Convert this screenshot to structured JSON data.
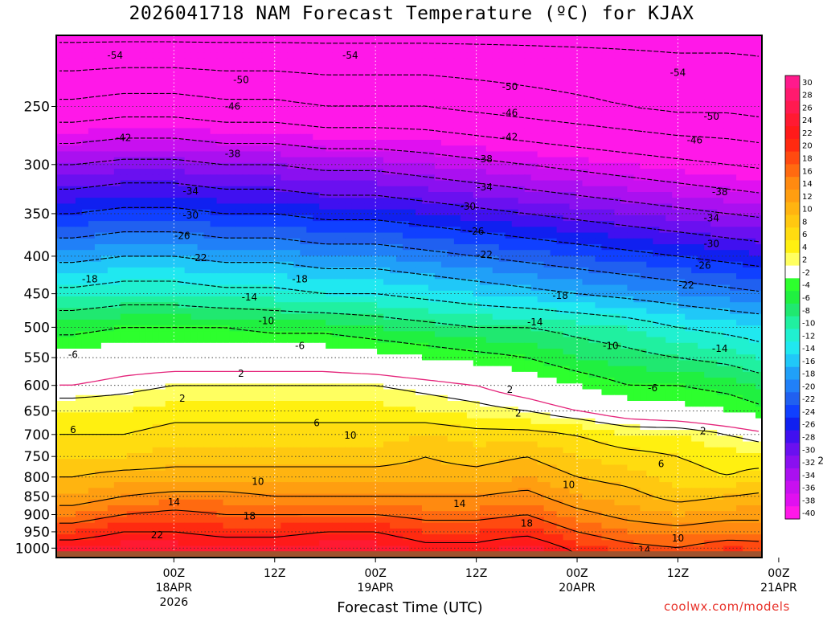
{
  "title": "2026041718 NAM Forecast Temperature (ºC) for KJAX",
  "credit": "coolwx.com/models",
  "colors": {
    "ground": "#a0522d",
    "freezing_line": "#e4247a",
    "positive_contour": "#000000",
    "negative_contour": "#000000"
  },
  "chart_data": {
    "type": "heatmap",
    "title": "2026041718 NAM Forecast Temperature (ºC) for KJAX",
    "xlabel": "Forecast Time (UTC)",
    "ylabel": "",
    "y_scale": "log-pressure (hPa), inverted",
    "y_ticks": [
      250,
      300,
      350,
      400,
      450,
      500,
      550,
      600,
      650,
      700,
      750,
      800,
      850,
      900,
      950,
      1000
    ],
    "y_range_hPa": [
      1030,
      200
    ],
    "x_range_hours": [
      -8,
      76
    ],
    "x_ticks": [
      {
        "hour": 6,
        "lines": [
          "00Z",
          "18APR",
          "2026"
        ]
      },
      {
        "hour": 18,
        "lines": [
          "12Z"
        ]
      },
      {
        "hour": 30,
        "lines": [
          "00Z",
          "19APR"
        ]
      },
      {
        "hour": 42,
        "lines": [
          "12Z"
        ]
      },
      {
        "hour": 54,
        "lines": [
          "00Z",
          "20APR"
        ]
      },
      {
        "hour": 66,
        "lines": [
          "12Z"
        ]
      },
      {
        "hour": 78,
        "lines": [
          "00Z",
          "21APR"
        ]
      }
    ],
    "colorbar_levels": [
      30,
      28,
      26,
      24,
      22,
      20,
      18,
      16,
      14,
      12,
      10,
      8,
      6,
      4,
      2,
      -2,
      -4,
      -6,
      -8,
      -10,
      -12,
      -14,
      -16,
      -18,
      -20,
      -22,
      -24,
      -26,
      -28,
      -30,
      -32,
      -34,
      -36,
      -38,
      -40
    ],
    "colorbar_colors": [
      "#ff1a8c",
      "#ff1a6e",
      "#ff1a50",
      "#ff1a32",
      "#ff1a1a",
      "#ff2a10",
      "#ff4a10",
      "#ff6a10",
      "#ff8a10",
      "#ff9e10",
      "#ffb410",
      "#ffc810",
      "#ffdc10",
      "#fff010",
      "#ffff60",
      "#ffffff",
      "#2dff2d",
      "#20f040",
      "#20e870",
      "#20f0a0",
      "#20f0d0",
      "#20e8f0",
      "#20c8f8",
      "#20a0f8",
      "#2080f8",
      "#2060f0",
      "#1040ff",
      "#1020f0",
      "#4010f0",
      "#6a10f0",
      "#8a10f0",
      "#aa10f0",
      "#c810f0",
      "#e010f0",
      "#ff18e8"
    ],
    "heights_hPa": [
      1010,
      1000,
      950,
      900,
      850,
      800,
      750,
      700,
      650,
      600,
      550,
      500,
      450,
      400,
      350,
      300,
      250,
      200
    ],
    "times_hours": [
      -6,
      0,
      6,
      12,
      18,
      24,
      30,
      36,
      42,
      48,
      54,
      60,
      66,
      72,
      78
    ],
    "temperature_grid_C": [
      [
        24,
        26,
        26,
        25,
        25,
        26,
        26,
        24,
        24,
        26,
        22,
        20,
        19,
        21,
        20
      ],
      [
        24,
        25,
        25,
        24,
        24,
        25,
        25,
        23,
        23,
        25,
        21,
        19,
        18,
        20,
        19
      ],
      [
        20,
        22,
        22,
        21,
        21,
        22,
        22,
        20,
        20,
        21,
        18,
        16,
        15,
        16,
        16
      ],
      [
        16,
        18,
        19,
        18,
        18,
        18,
        18,
        17,
        17,
        18,
        15,
        13,
        12,
        13,
        13
      ],
      [
        12,
        14,
        15,
        15,
        14,
        14,
        14,
        14,
        14,
        15,
        12,
        11,
        9,
        10,
        11
      ],
      [
        10,
        11,
        11,
        11,
        11,
        11,
        11,
        11,
        11,
        12,
        10,
        9,
        7,
        6,
        8
      ],
      [
        8,
        8,
        9,
        9,
        9,
        9,
        9,
        10,
        9,
        10,
        8,
        7,
        6,
        5,
        4
      ],
      [
        6,
        6,
        7,
        7,
        7,
        7,
        7,
        8,
        7,
        7,
        6,
        4,
        4,
        2,
        0
      ],
      [
        4,
        4,
        5,
        5,
        5,
        5,
        5,
        4,
        3,
        2,
        0,
        -2,
        -3,
        -4,
        -6
      ],
      [
        0,
        1,
        2,
        2,
        2,
        2,
        2,
        1,
        0,
        -2,
        -4,
        -6,
        -6,
        -7,
        -9
      ],
      [
        -3,
        -2,
        -2,
        -2,
        -2,
        -2,
        -3,
        -4,
        -5,
        -6,
        -8,
        -9,
        -10,
        -11,
        -13
      ],
      [
        -7,
        -6,
        -6,
        -6,
        -7,
        -7,
        -8,
        -9,
        -10,
        -10,
        -11,
        -12,
        -14,
        -15,
        -16
      ],
      [
        -13,
        -12,
        -12,
        -13,
        -13,
        -14,
        -14,
        -15,
        -16,
        -17,
        -18,
        -19,
        -20,
        -21,
        -22
      ],
      [
        -19,
        -18,
        -18,
        -19,
        -19,
        -20,
        -20,
        -21,
        -22,
        -23,
        -24,
        -25,
        -26,
        -27,
        -28
      ],
      [
        -26,
        -25,
        -25,
        -26,
        -26,
        -27,
        -27,
        -28,
        -29,
        -30,
        -31,
        -32,
        -33,
        -34,
        -35
      ],
      [
        -34,
        -33,
        -33,
        -34,
        -34,
        -35,
        -35,
        -36,
        -37,
        -38,
        -39,
        -40,
        -41,
        -42,
        -43
      ],
      [
        -45,
        -44,
        -44,
        -45,
        -45,
        -46,
        -46,
        -46,
        -47,
        -48,
        -49,
        -50,
        -51,
        -51,
        -52
      ],
      [
        -55,
        -55,
        -55,
        -55,
        -55,
        -55,
        -55,
        -55,
        -55,
        -55,
        -55,
        -55,
        -55,
        -55,
        -55
      ]
    ],
    "contour_labels": [
      {
        "v": -54,
        "t": -1,
        "p": 213
      },
      {
        "v": -54,
        "t": 27,
        "p": 213
      },
      {
        "v": -54,
        "t": 66,
        "p": 225
      },
      {
        "v": -50,
        "t": 14,
        "p": 230
      },
      {
        "v": -50,
        "t": 46,
        "p": 235
      },
      {
        "v": -50,
        "t": 70,
        "p": 258
      },
      {
        "v": -46,
        "t": 13,
        "p": 250
      },
      {
        "v": -46,
        "t": 46,
        "p": 255
      },
      {
        "v": -46,
        "t": 68,
        "p": 278
      },
      {
        "v": -42,
        "t": 0,
        "p": 276
      },
      {
        "v": -42,
        "t": 46,
        "p": 275
      },
      {
        "v": -38,
        "t": 13,
        "p": 290
      },
      {
        "v": -38,
        "t": 43,
        "p": 295
      },
      {
        "v": -38,
        "t": 71,
        "p": 327
      },
      {
        "v": -34,
        "t": 8,
        "p": 326
      },
      {
        "v": -34,
        "t": 43,
        "p": 322
      },
      {
        "v": -34,
        "t": 70,
        "p": 355
      },
      {
        "v": -30,
        "t": 8,
        "p": 352
      },
      {
        "v": -30,
        "t": 41,
        "p": 342
      },
      {
        "v": -30,
        "t": 70,
        "p": 385
      },
      {
        "v": -26,
        "t": 7,
        "p": 375
      },
      {
        "v": -26,
        "t": 42,
        "p": 370
      },
      {
        "v": -26,
        "t": 69,
        "p": 412
      },
      {
        "v": -22,
        "t": 9,
        "p": 402
      },
      {
        "v": -22,
        "t": 43,
        "p": 398
      },
      {
        "v": -22,
        "t": 67,
        "p": 438
      },
      {
        "v": -18,
        "t": -4,
        "p": 430
      },
      {
        "v": -18,
        "t": 21,
        "p": 430
      },
      {
        "v": -18,
        "t": 52,
        "p": 453
      },
      {
        "v": -14,
        "t": 15,
        "p": 455
      },
      {
        "v": -14,
        "t": 49,
        "p": 492
      },
      {
        "v": -14,
        "t": 71,
        "p": 535
      },
      {
        "v": -10,
        "t": 17,
        "p": 490
      },
      {
        "v": -10,
        "t": 58,
        "p": 530
      },
      {
        "v": -6,
        "t": -6,
        "p": 545
      },
      {
        "v": -6,
        "t": 21,
        "p": 530
      },
      {
        "v": -6,
        "t": 63,
        "p": 605
      },
      {
        "v": 2,
        "t": 14,
        "p": 578
      },
      {
        "v": 2,
        "t": 46,
        "p": 608
      },
      {
        "v": 2,
        "t": 7,
        "p": 625
      },
      {
        "v": 2,
        "t": 47,
        "p": 655
      },
      {
        "v": 2,
        "t": 69,
        "p": 692
      },
      {
        "v": 2,
        "t": 83,
        "p": 760
      },
      {
        "v": 6,
        "t": -6,
        "p": 690
      },
      {
        "v": 6,
        "t": 23,
        "p": 675
      },
      {
        "v": 6,
        "t": 64,
        "p": 768
      },
      {
        "v": 10,
        "t": 27,
        "p": 702
      },
      {
        "v": 10,
        "t": 16,
        "p": 812
      },
      {
        "v": 10,
        "t": 53,
        "p": 820
      },
      {
        "v": 10,
        "t": 66,
        "p": 970
      },
      {
        "v": 14,
        "t": 6,
        "p": 865
      },
      {
        "v": 14,
        "t": 40,
        "p": 870
      },
      {
        "v": 14,
        "t": 62,
        "p": 1005
      },
      {
        "v": 18,
        "t": 15,
        "p": 905
      },
      {
        "v": 18,
        "t": 48,
        "p": 925
      },
      {
        "v": 22,
        "t": 4,
        "p": 960
      }
    ]
  }
}
